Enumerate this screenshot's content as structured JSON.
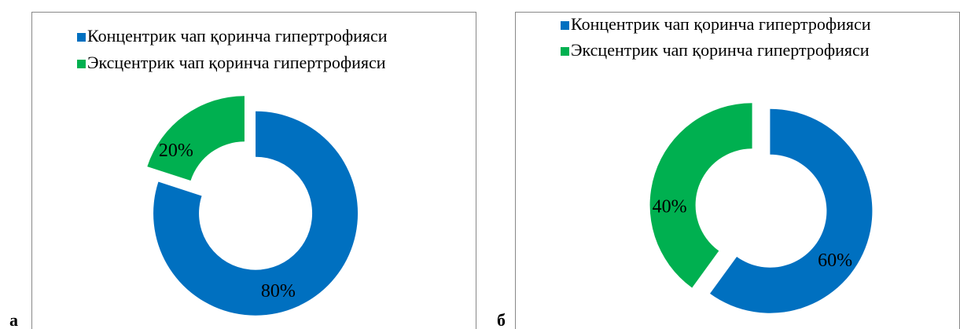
{
  "chart_data": [
    {
      "type": "donut",
      "panel_label": "а",
      "categories": [
        "Концентрик чап қоринча гипертрофияси",
        "Эксцентрик чап қоринча гипертрофияси"
      ],
      "values": [
        80,
        20
      ],
      "value_labels": [
        "80%",
        "20%"
      ],
      "colors": [
        "#0070c0",
        "#00b050"
      ]
    },
    {
      "type": "donut",
      "panel_label": "б",
      "categories": [
        "Концентрик чап қоринча гипертрофияси",
        "Эксцентрик чап қоринча гипертрофияси"
      ],
      "values": [
        60,
        40
      ],
      "value_labels": [
        "60%",
        "40%"
      ],
      "colors": [
        "#0070c0",
        "#00b050"
      ]
    }
  ]
}
